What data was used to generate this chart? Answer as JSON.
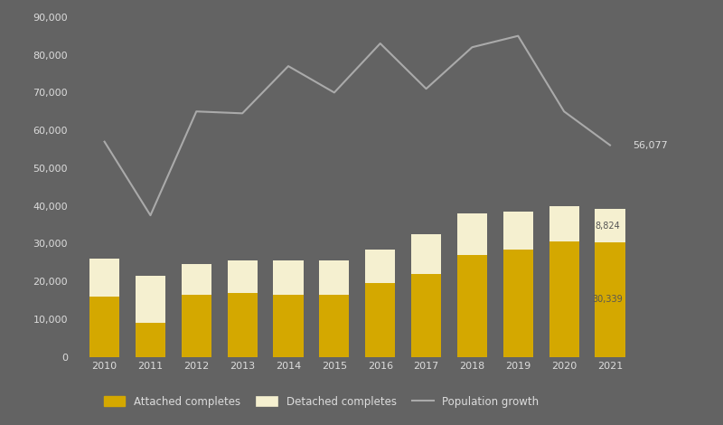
{
  "years": [
    2010,
    2011,
    2012,
    2013,
    2014,
    2015,
    2016,
    2017,
    2018,
    2019,
    2020,
    2021
  ],
  "attached_completes": [
    16000,
    9000,
    16500,
    17000,
    16500,
    16500,
    19500,
    22000,
    27000,
    28500,
    30500,
    30339
  ],
  "detached_completes": [
    10000,
    12500,
    8000,
    8500,
    9000,
    9000,
    9000,
    10500,
    11000,
    10000,
    9500,
    8824
  ],
  "population_growth": [
    57000,
    37500,
    65000,
    64500,
    77000,
    70000,
    83000,
    71000,
    82000,
    85000,
    65000,
    56077
  ],
  "background_color": "#636363",
  "bar_color_attached": "#D4A800",
  "bar_color_detached": "#F5F0D0",
  "line_color": "#AAAAAA",
  "text_color": "#DDDDDD",
  "annotation_color": "#AAAAAA",
  "ylim": [
    0,
    90000
  ],
  "yticks": [
    0,
    10000,
    20000,
    30000,
    40000,
    50000,
    60000,
    70000,
    80000,
    90000
  ],
  "ytick_labels": [
    "0",
    "10,000",
    "20,000",
    "30,000",
    "40,000",
    "50,000",
    "60,000",
    "70,000",
    "80,000",
    "90,000"
  ],
  "legend_attached": "Attached completes",
  "legend_detached": "Detached completes",
  "legend_population": "Population growth",
  "last_year_annotation_attached": "30,339",
  "last_year_annotation_detached": "8,824",
  "last_year_annotation_population": "56,077"
}
